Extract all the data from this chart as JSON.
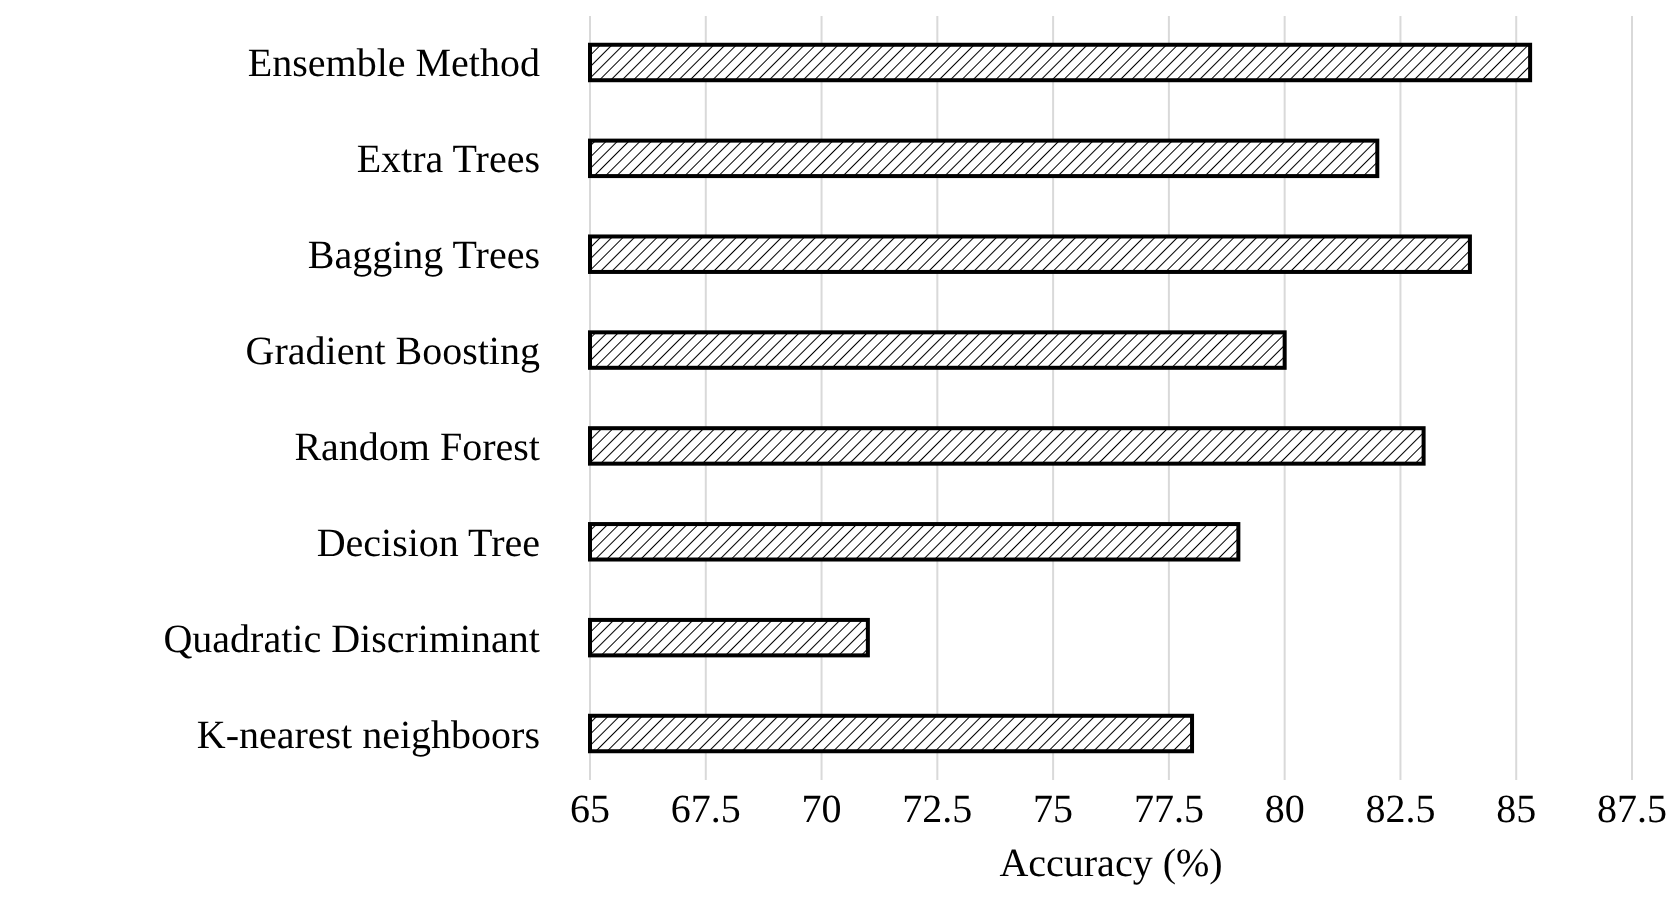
{
  "chart_data": {
    "type": "bar",
    "orientation": "horizontal",
    "xlabel": "Accuracy (%)",
    "categories": [
      "Ensemble Method",
      "Extra Trees",
      "Bagging Trees",
      "Gradient Boosting",
      "Random Forest",
      "Decision Tree",
      "Quadratic Discriminant",
      "K-nearest neighboors"
    ],
    "values": [
      85.3,
      82,
      84,
      80,
      83,
      79,
      71,
      78
    ],
    "color": "#000000",
    "xlim": [
      65,
      87.5
    ],
    "xticks": [
      65,
      67.5,
      70,
      72.5,
      75,
      77.5,
      80,
      82.5,
      85,
      87.5
    ],
    "grid": "x"
  }
}
